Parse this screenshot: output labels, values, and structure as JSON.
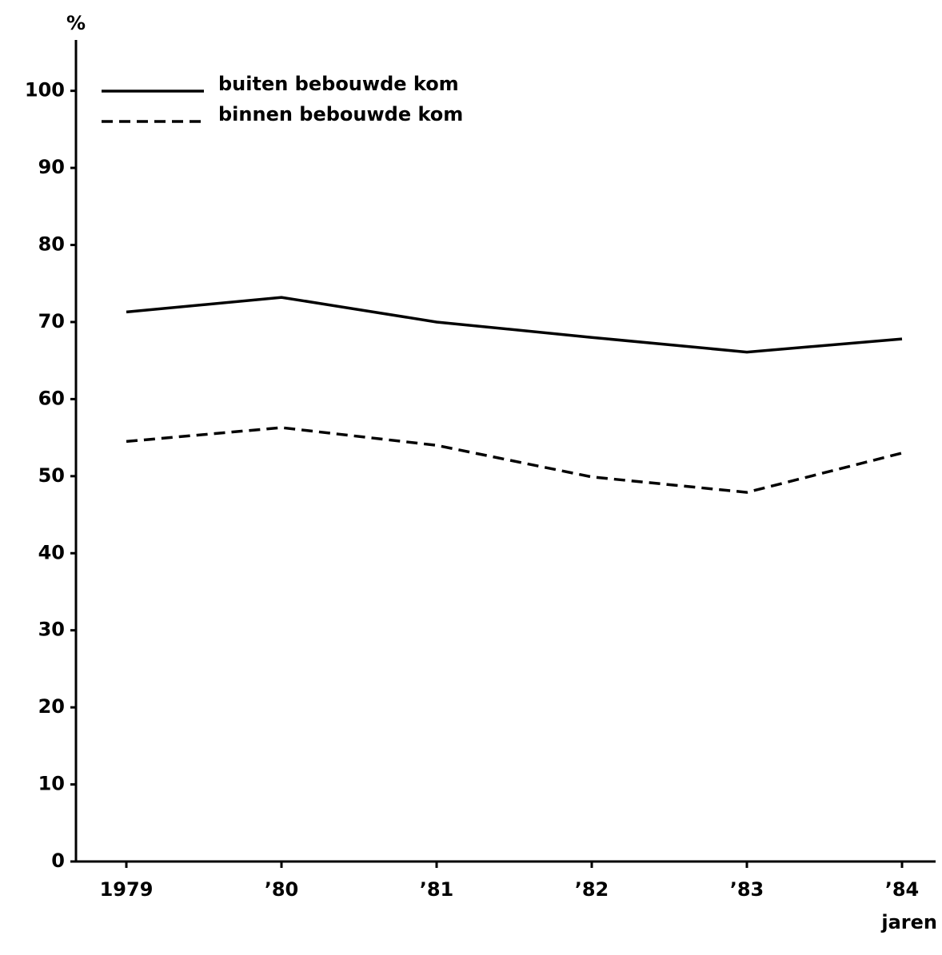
{
  "chart_data": {
    "type": "line",
    "y_label": "%",
    "x_label": "jaren",
    "categories": [
      "1979",
      "’80",
      "’81",
      "’82",
      "’83",
      "’84"
    ],
    "series": [
      {
        "name": "buiten bebouwde kom",
        "color": "#000000",
        "dash": "solid",
        "values": [
          71.3,
          73.2,
          70.0,
          68.0,
          66.1,
          67.8
        ]
      },
      {
        "name": "binnen bebouwde kom",
        "color": "#000000",
        "dash": "dashed",
        "values": [
          54.5,
          56.3,
          54.0,
          49.9,
          47.9,
          53.0
        ]
      }
    ],
    "ylim": [
      0,
      106.6
    ],
    "yticks": [
      0,
      10,
      20,
      30,
      40,
      50,
      60,
      70,
      80,
      90,
      100
    ],
    "grid": false
  }
}
